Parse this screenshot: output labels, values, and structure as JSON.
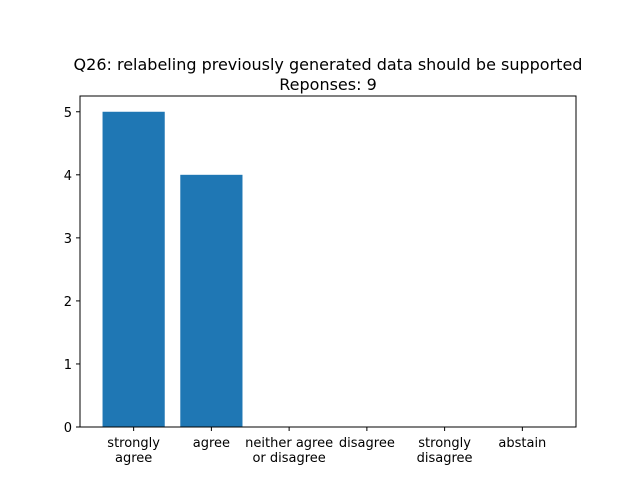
{
  "chart_data": {
    "type": "bar",
    "title": "Q26: relabeling previously generated data should be supported",
    "subtitle": "Reponses: 9",
    "categories": [
      "strongly\nagree",
      "agree",
      "neither agree\nor disagree",
      "disagree",
      "strongly\ndisagree",
      "abstain"
    ],
    "values": [
      5,
      4,
      0,
      0,
      0,
      0
    ],
    "color": "#1f77b4",
    "ylim": [
      0,
      5.25
    ],
    "yticks": [
      0,
      1,
      2,
      3,
      4,
      5
    ]
  }
}
